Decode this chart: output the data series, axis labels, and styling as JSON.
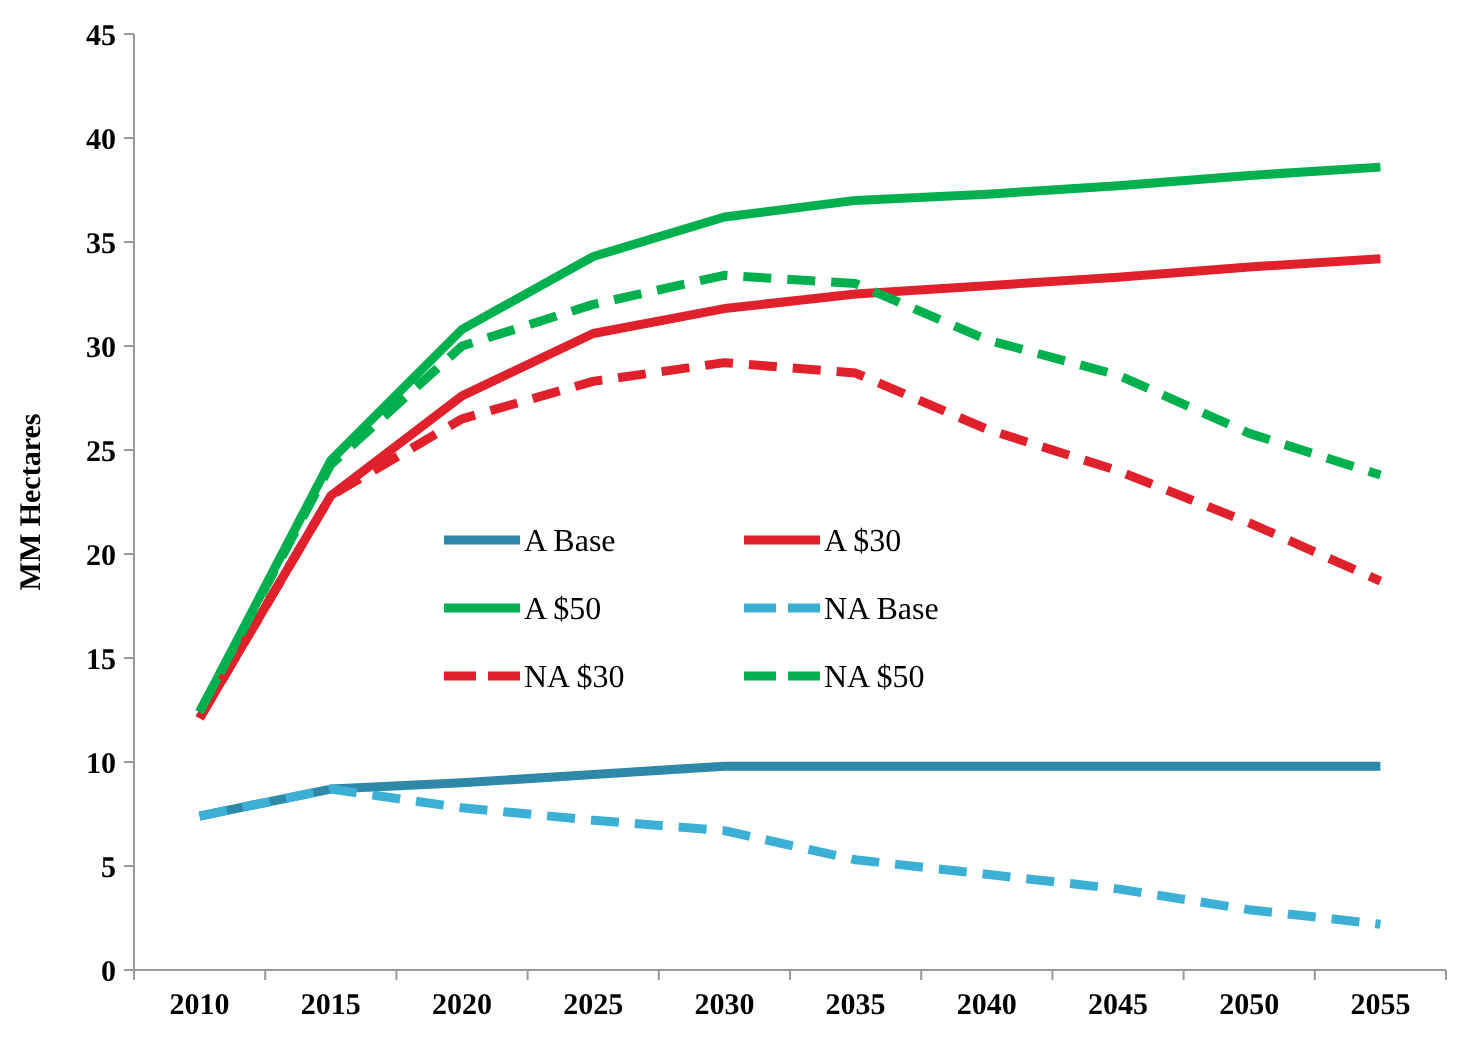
{
  "chart_data": {
    "type": "line",
    "ylabel": "MM Hectares",
    "categories": [
      "2010",
      "2015",
      "2020",
      "2025",
      "2030",
      "2035",
      "2040",
      "2045",
      "2050",
      "2055"
    ],
    "ylim": [
      0,
      45
    ],
    "yticks": [
      0,
      5,
      10,
      15,
      20,
      25,
      30,
      35,
      40,
      45
    ],
    "grid": false,
    "legend": "center",
    "marker": "none",
    "series": [
      {
        "name": "A Base",
        "color": "#2e88a8",
        "line_style": "solid",
        "values": [
          7.4,
          8.7,
          9.0,
          9.4,
          9.8,
          9.8,
          9.8,
          9.8,
          9.8,
          9.8
        ]
      },
      {
        "name": "A $30",
        "color": "#e0202b",
        "line_style": "solid",
        "values": [
          12.1,
          22.8,
          27.6,
          30.6,
          31.8,
          32.5,
          32.9,
          33.3,
          33.8,
          34.2
        ]
      },
      {
        "name": "A $50",
        "color": "#00b04f",
        "line_style": "solid",
        "values": [
          12.4,
          24.5,
          30.8,
          34.3,
          36.2,
          37.0,
          37.3,
          37.7,
          38.2,
          38.6
        ]
      },
      {
        "name": "NA Base",
        "color": "#3bb0d4",
        "line_style": "dashed",
        "values": [
          7.4,
          8.7,
          7.8,
          7.2,
          6.7,
          5.3,
          4.6,
          3.9,
          2.9,
          2.2
        ]
      },
      {
        "name": "NA $30",
        "color": "#e0202b",
        "line_style": "dashed",
        "values": [
          12.1,
          22.8,
          26.5,
          28.3,
          29.2,
          28.7,
          26.0,
          24.0,
          21.5,
          18.7
        ]
      },
      {
        "name": "NA $50",
        "color": "#00b04f",
        "line_style": "dashed",
        "values": [
          12.4,
          24.3,
          30.0,
          32.0,
          33.4,
          33.0,
          30.3,
          28.6,
          25.8,
          23.8
        ]
      }
    ]
  }
}
